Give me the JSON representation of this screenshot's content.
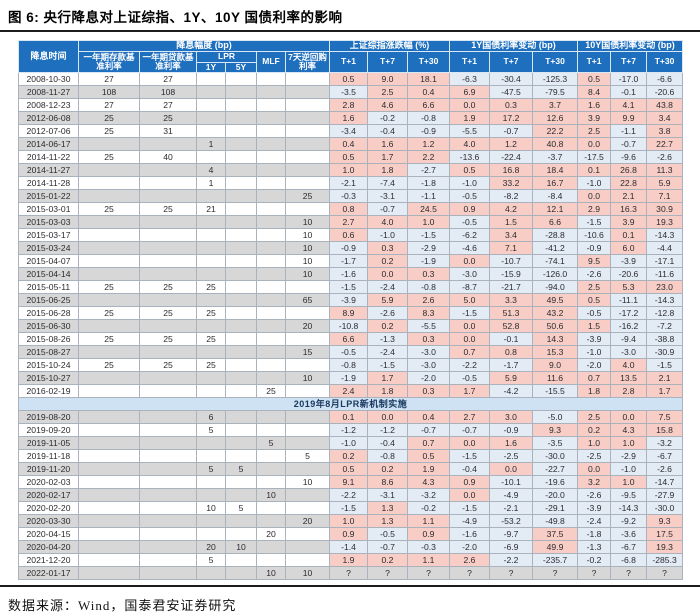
{
  "title_prefix": "图 6:",
  "source": "数据来源：Wind，国泰君安证券研究",
  "colors": {
    "header_bg": "#1e6fbe",
    "positive_cell_bg": "#f8cdc5",
    "negative_cell_bg": "#e3ebf5",
    "row_alt_gray": "#d7d7d7",
    "section_row_bg": "#cfe2f3",
    "section_text": "#17375e"
  },
  "chart_data": {
    "type": "table",
    "title": "图 6: 央行降息对上证综指、1Y、10Y 国债利率的影响",
    "header": {
      "date": "降息时间",
      "cut_group": "降息幅度 (bp)",
      "deposit": "一年期存款基准利率",
      "loan": "一年期贷款基准利率",
      "lpr": "LPR",
      "lpr_1y": "1Y",
      "lpr_5y": "5Y",
      "mlf": "MLF",
      "repo7d": "7天逆回购利率",
      "index_group": "上证综指涨跌幅 (%)",
      "bond1y_group": "1Y国债利率变动 (bp)",
      "bond10y_group": "10Y国债利率变动 (bp)",
      "t1": "T+1",
      "t7": "T+7",
      "t30": "T+30"
    },
    "columns": [
      "降息时间",
      "一年期存款基准利率",
      "一年期贷款基准利率",
      "LPR 1Y",
      "LPR 5Y",
      "MLF",
      "7天逆回购利率",
      "上证综指涨跌幅% T+1",
      "上证综指涨跌幅% T+7",
      "上证综指涨跌幅% T+30",
      "1Y国债利率变动bp T+1",
      "1Y国债利率变动bp T+7",
      "1Y国债利率变动bp T+30",
      "10Y国债利率变动bp T+1",
      "10Y国债利率变动bp T+7",
      "10Y国债利率变动bp T+30"
    ],
    "rows": [
      [
        "2008-10-30",
        "27",
        "27",
        "",
        "",
        "",
        "",
        "0.5",
        "9.0",
        "18.1",
        "-6.3",
        "-30.4",
        "-125.3",
        "0.5",
        "-17.0",
        "-6.6"
      ],
      [
        "2008-11-27",
        "108",
        "108",
        "",
        "",
        "",
        "",
        "-3.5",
        "2.5",
        "0.4",
        "6.9",
        "-47.5",
        "-79.5",
        "8.4",
        "-0.1",
        "-20.6"
      ],
      [
        "2008-12-23",
        "27",
        "27",
        "",
        "",
        "",
        "",
        "2.8",
        "4.6",
        "6.6",
        "0.0",
        "0.3",
        "3.7",
        "1.6",
        "4.1",
        "43.8"
      ],
      [
        "2012-06-08",
        "25",
        "25",
        "",
        "",
        "",
        "",
        "1.6",
        "-0.2",
        "-0.8",
        "1.9",
        "17.2",
        "12.6",
        "3.9",
        "9.9",
        "3.4"
      ],
      [
        "2012-07-06",
        "25",
        "31",
        "",
        "",
        "",
        "",
        "-3.4",
        "-0.4",
        "-0.9",
        "-5.5",
        "-0.7",
        "22.2",
        "2.5",
        "-1.1",
        "3.8"
      ],
      [
        "2014-06-17",
        "",
        "",
        "1",
        "",
        "",
        "",
        "0.4",
        "1.6",
        "1.2",
        "4.0",
        "1.2",
        "40.8",
        "0.0",
        "-0.7",
        "22.7"
      ],
      [
        "2014-11-22",
        "25",
        "40",
        "",
        "",
        "",
        "",
        "0.5",
        "1.7",
        "2.2",
        "-13.6",
        "-22.4",
        "-3.7",
        "-17.5",
        "-9.6",
        "-2.6"
      ],
      [
        "2014-11-27",
        "",
        "",
        "4",
        "",
        "",
        "",
        "1.0",
        "1.8",
        "-2.7",
        "0.5",
        "16.8",
        "18.4",
        "0.1",
        "26.8",
        "11.3"
      ],
      [
        "2014-11-28",
        "",
        "",
        "1",
        "",
        "",
        "",
        "-2.1",
        "-7.4",
        "-1.8",
        "-1.0",
        "33.2",
        "16.7",
        "-1.0",
        "22.8",
        "5.9"
      ],
      [
        "2015-01-22",
        "",
        "",
        "",
        "",
        "",
        "25",
        "-0.3",
        "-3.1",
        "-1.1",
        "-0.5",
        "-8.2",
        "-8.4",
        "0.0",
        "2.1",
        "7.1"
      ],
      [
        "2015-03-01",
        "25",
        "25",
        "21",
        "",
        "",
        "",
        "0.8",
        "-0.7",
        "24.5",
        "0.9",
        "4.2",
        "12.1",
        "2.9",
        "16.3",
        "30.9"
      ],
      [
        "2015-03-03",
        "",
        "",
        "",
        "",
        "",
        "10",
        "2.7",
        "4.0",
        "1.0",
        "-0.5",
        "1.5",
        "6.6",
        "-1.5",
        "3.9",
        "19.3"
      ],
      [
        "2015-03-17",
        "",
        "",
        "",
        "",
        "",
        "10",
        "0.6",
        "-1.0",
        "-1.5",
        "-6.2",
        "3.4",
        "-28.8",
        "-10.6",
        "0.1",
        "-14.3"
      ],
      [
        "2015-03-24",
        "",
        "",
        "",
        "",
        "",
        "10",
        "-0.9",
        "0.3",
        "-2.9",
        "-4.6",
        "7.1",
        "-41.2",
        "-0.9",
        "6.0",
        "-4.4"
      ],
      [
        "2015-04-07",
        "",
        "",
        "",
        "",
        "",
        "10",
        "-1.7",
        "0.2",
        "-1.9",
        "0.0",
        "-10.7",
        "-74.1",
        "9.5",
        "-3.9",
        "-17.1"
      ],
      [
        "2015-04-14",
        "",
        "",
        "",
        "",
        "",
        "10",
        "-1.6",
        "0.0",
        "0.3",
        "-3.0",
        "-15.9",
        "-126.0",
        "-2.6",
        "-20.6",
        "-11.6"
      ],
      [
        "2015-05-11",
        "25",
        "25",
        "25",
        "",
        "",
        "",
        "-1.5",
        "-2.4",
        "-0.8",
        "-8.7",
        "-21.7",
        "-94.0",
        "2.5",
        "5.3",
        "23.0"
      ],
      [
        "2015-06-25",
        "",
        "",
        "",
        "",
        "",
        "65",
        "-3.9",
        "5.9",
        "2.6",
        "5.0",
        "3.3",
        "49.5",
        "0.5",
        "-11.1",
        "-14.3"
      ],
      [
        "2015-06-28",
        "25",
        "25",
        "25",
        "",
        "",
        "",
        "8.9",
        "-2.6",
        "8.3",
        "-1.5",
        "51.3",
        "43.2",
        "-0.5",
        "-17.2",
        "-12.8"
      ],
      [
        "2015-06-30",
        "",
        "",
        "",
        "",
        "",
        "20",
        "-10.8",
        "0.2",
        "-5.5",
        "0.0",
        "52.8",
        "50.6",
        "1.5",
        "-16.2",
        "-7.2"
      ],
      [
        "2015-08-26",
        "25",
        "25",
        "25",
        "",
        "",
        "",
        "6.6",
        "-1.3",
        "0.3",
        "0.0",
        "-0.1",
        "14.3",
        "-3.9",
        "-9.4",
        "-38.8"
      ],
      [
        "2015-08-27",
        "",
        "",
        "",
        "",
        "",
        "15",
        "-0.5",
        "-2.4",
        "-3.0",
        "0.7",
        "0.8",
        "15.3",
        "-1.0",
        "-3.0",
        "-30.9"
      ],
      [
        "2015-10-24",
        "25",
        "25",
        "25",
        "",
        "",
        "",
        "-0.8",
        "-1.5",
        "-3.0",
        "-2.2",
        "-1.7",
        "9.0",
        "-2.0",
        "4.0",
        "-1.5"
      ],
      [
        "2015-10-27",
        "",
        "",
        "",
        "",
        "",
        "10",
        "-1.9",
        "1.7",
        "-2.0",
        "-0.5",
        "5.9",
        "11.6",
        "0.7",
        "13.5",
        "2.1"
      ],
      [
        "2016-02-19",
        "",
        "",
        "",
        "",
        "25",
        "",
        "2.4",
        "1.8",
        "0.3",
        "1.7",
        "-4.2",
        "-15.5",
        "1.8",
        "2.8",
        "1.7"
      ],
      "2019年8月LPR新机制实施",
      [
        "2019-08-20",
        "",
        "",
        "6",
        "",
        "",
        "",
        "0.1",
        "0.0",
        "0.4",
        "2.7",
        "3.0",
        "-5.0",
        "2.5",
        "0.0",
        "7.5"
      ],
      [
        "2019-09-20",
        "",
        "",
        "5",
        "",
        "",
        "",
        "-1.2",
        "-1.2",
        "-0.7",
        "-0.7",
        "-0.9",
        "9.3",
        "0.2",
        "4.3",
        "15.8"
      ],
      [
        "2019-11-05",
        "",
        "",
        "",
        "",
        "5",
        "",
        "-1.0",
        "-0.4",
        "0.7",
        "0.0",
        "1.6",
        "-3.5",
        "1.0",
        "1.0",
        "-3.2"
      ],
      [
        "2019-11-18",
        "",
        "",
        "",
        "",
        "",
        "5",
        "0.2",
        "-0.8",
        "0.5",
        "-1.5",
        "-2.5",
        "-30.0",
        "-2.5",
        "-2.9",
        "-6.7"
      ],
      [
        "2019-11-20",
        "",
        "",
        "5",
        "5",
        "",
        "",
        "0.5",
        "0.2",
        "1.9",
        "-0.4",
        "0.0",
        "-22.7",
        "0.0",
        "-1.0",
        "-2.6"
      ],
      [
        "2020-02-03",
        "",
        "",
        "",
        "",
        "",
        "10",
        "9.1",
        "8.6",
        "4.3",
        "0.9",
        "-10.1",
        "-19.6",
        "3.2",
        "1.0",
        "-14.7"
      ],
      [
        "2020-02-17",
        "",
        "",
        "",
        "",
        "10",
        "",
        "-2.2",
        "-3.1",
        "-3.2",
        "0.0",
        "-4.9",
        "-20.0",
        "-2.6",
        "-9.5",
        "-27.9"
      ],
      [
        "2020-02-20",
        "",
        "",
        "10",
        "5",
        "",
        "",
        "-1.5",
        "1.3",
        "-0.2",
        "-1.5",
        "-2.1",
        "-29.1",
        "-3.9",
        "-14.3",
        "-30.0"
      ],
      [
        "2020-03-30",
        "",
        "",
        "",
        "",
        "",
        "20",
        "1.0",
        "1.3",
        "1.1",
        "-4.9",
        "-53.2",
        "-49.8",
        "-2.4",
        "-9.2",
        "9.3"
      ],
      [
        "2020-04-15",
        "",
        "",
        "",
        "",
        "20",
        "",
        "0.9",
        "-0.5",
        "0.9",
        "-1.6",
        "-9.7",
        "37.5",
        "-1.8",
        "-3.6",
        "17.5"
      ],
      [
        "2020-04-20",
        "",
        "",
        "20",
        "10",
        "",
        "",
        "-1.4",
        "-0.7",
        "-0.3",
        "-2.0",
        "-6.9",
        "49.9",
        "-1.3",
        "-6.7",
        "19.3"
      ],
      [
        "2021-12-20",
        "",
        "",
        "5",
        "",
        "",
        "",
        "1.9",
        "0.2",
        "1.1",
        "2.6",
        "-2.2",
        "-235.7",
        "-0.2",
        "-6.8",
        "-285.3"
      ],
      [
        "2022-01-17",
        "",
        "",
        "",
        "",
        "10",
        "10",
        "?",
        "?",
        "?",
        "?",
        "?",
        "?",
        "?",
        "?",
        "?"
      ]
    ]
  }
}
